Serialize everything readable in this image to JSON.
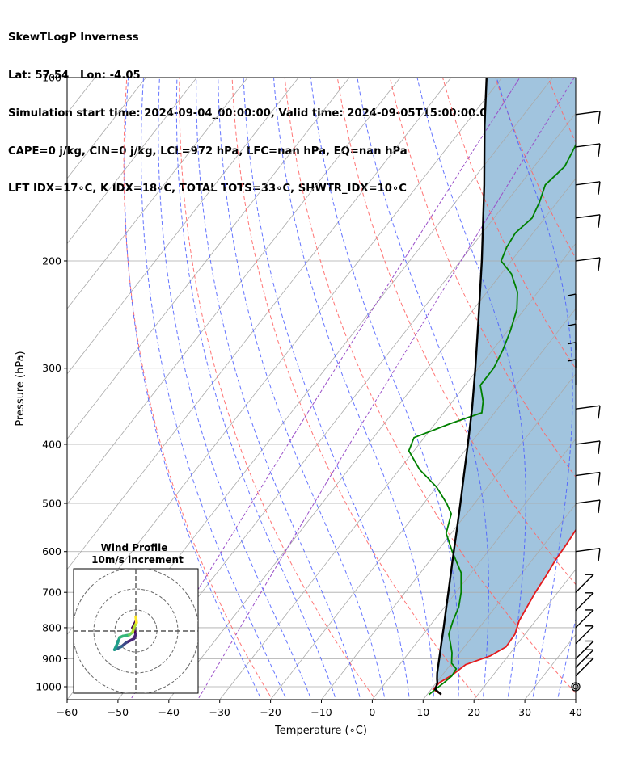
{
  "header": {
    "lines": [
      "SkewTLogP Inverness",
      "Lat: 57.54   Lon: -4.05",
      "Simulation start time: 2024-09-04_00:00:00, Valid time: 2024-09-05T15:00:00.00",
      "CAPE=0 j/kg, CIN=0 j/kg, LCL=972 hPa, LFC=nan hPa, EQ=nan hPa",
      "LFT IDX=17∘C, K IDX=18∘C, TOTAL TOTS=33∘C, SHWTR_IDX=10∘C"
    ]
  },
  "chart_data": {
    "type": "line",
    "subtype": "skew-t log-p",
    "xlabel": "Temperature (∘C)",
    "ylabel": "Pressure (hPa)",
    "xlim": [
      -60,
      40
    ],
    "ylim_hpa": [
      1050,
      100
    ],
    "x_ticks": [
      -60,
      -50,
      -40,
      -30,
      -20,
      -10,
      0,
      10,
      20,
      30,
      40
    ],
    "y_ticks": [
      1000,
      900,
      800,
      700,
      600,
      500,
      400,
      300,
      200,
      100
    ],
    "grid": true,
    "series": [
      {
        "role": "temperature",
        "color": "#e41a1c",
        "points": [
          [
            1030,
            12.8
          ],
          [
            1010,
            10.4
          ],
          [
            985,
            10.6
          ],
          [
            955,
            12
          ],
          [
            920,
            13
          ],
          [
            890,
            16.5
          ],
          [
            860,
            18.2
          ],
          [
            820,
            18
          ],
          [
            780,
            16.8
          ],
          [
            740,
            16.2
          ],
          [
            700,
            15.6
          ],
          [
            660,
            15.2
          ],
          [
            620,
            14.6
          ],
          [
            580,
            14.3
          ],
          [
            540,
            13.8
          ],
          [
            520,
            13
          ],
          [
            500,
            12
          ],
          [
            470,
            10
          ],
          [
            440,
            8
          ],
          [
            410,
            6
          ],
          [
            380,
            4
          ],
          [
            360,
            2
          ],
          [
            340,
            1
          ],
          [
            320,
            0
          ],
          [
            300,
            -1
          ],
          [
            280,
            -3
          ],
          [
            260,
            -5
          ],
          [
            240,
            -7
          ],
          [
            228,
            -8
          ],
          [
            215,
            -9
          ],
          [
            205,
            -10
          ],
          [
            200,
            -11
          ],
          [
            190,
            -13
          ],
          [
            180,
            -15
          ],
          [
            170,
            -16
          ],
          [
            160,
            -17
          ],
          [
            150,
            -19
          ],
          [
            140,
            -21
          ],
          [
            130,
            -23
          ],
          [
            122,
            -26
          ],
          [
            116,
            -29
          ],
          [
            110,
            -32
          ],
          [
            105,
            -34
          ],
          [
            100,
            -36
          ]
        ]
      },
      {
        "role": "dewpoint",
        "color": "#008000",
        "points": [
          [
            1030,
            10.4
          ],
          [
            1010,
            10.8
          ],
          [
            985,
            11.5
          ],
          [
            960,
            12
          ],
          [
            935,
            11.8
          ],
          [
            915,
            10
          ],
          [
            880,
            8.5
          ],
          [
            850,
            6.8
          ],
          [
            820,
            5
          ],
          [
            780,
            3.8
          ],
          [
            740,
            2.8
          ],
          [
            700,
            1
          ],
          [
            650,
            -2
          ],
          [
            600,
            -7
          ],
          [
            560,
            -11
          ],
          [
            520,
            -13
          ],
          [
            500,
            -15.5
          ],
          [
            470,
            -20
          ],
          [
            440,
            -26
          ],
          [
            410,
            -31
          ],
          [
            390,
            -32
          ],
          [
            370,
            -27
          ],
          [
            355,
            -22.5
          ],
          [
            340,
            -24
          ],
          [
            320,
            -27
          ],
          [
            300,
            -27
          ],
          [
            280,
            -28
          ],
          [
            260,
            -29.5
          ],
          [
            240,
            -31.5
          ],
          [
            225,
            -34
          ],
          [
            210,
            -38
          ],
          [
            200,
            -42
          ],
          [
            190,
            -43
          ],
          [
            180,
            -43.5
          ],
          [
            170,
            -42.5
          ],
          [
            160,
            -43.5
          ],
          [
            150,
            -45
          ],
          [
            140,
            -44
          ],
          [
            130,
            -45
          ],
          [
            120,
            -46.5
          ],
          [
            110,
            -48.5
          ],
          [
            100,
            -51
          ]
        ]
      },
      {
        "role": "parcel",
        "color": "#000000",
        "points": [
          [
            1030,
            12.8
          ],
          [
            1010,
            10.8
          ],
          [
            985,
            10.2
          ],
          [
            972,
            9.6
          ],
          [
            950,
            8.7
          ],
          [
            900,
            6.9
          ],
          [
            850,
            5
          ],
          [
            800,
            3
          ],
          [
            750,
            0.8
          ],
          [
            700,
            -1.5
          ],
          [
            650,
            -4
          ],
          [
            600,
            -6.7
          ],
          [
            550,
            -9.6
          ],
          [
            500,
            -12.8
          ],
          [
            450,
            -16.4
          ],
          [
            400,
            -20.4
          ],
          [
            350,
            -25
          ],
          [
            300,
            -30.6
          ],
          [
            250,
            -37.4
          ],
          [
            200,
            -45.8
          ],
          [
            150,
            -57
          ],
          [
            120,
            -66
          ],
          [
            100,
            -73
          ]
        ]
      }
    ],
    "shading": {
      "between": [
        "parcel",
        "temperature"
      ],
      "color": "#a1c4de"
    },
    "reference_lines": {
      "dry_adiabats_color": "#ff6666",
      "moist_adiabats_color": "#4a5dff",
      "mixing_ratio_color": "#9a4fc8",
      "isotherms_color": "#aaaaaa"
    },
    "wind_barbs": [
      {
        "p": 1000,
        "type": "calm"
      },
      {
        "p": 960,
        "type": "barb"
      },
      {
        "p": 930,
        "type": "barb"
      },
      {
        "p": 900,
        "type": "barb"
      },
      {
        "p": 850,
        "type": "barb"
      },
      {
        "p": 800,
        "type": "barb"
      },
      {
        "p": 750,
        "type": "barb"
      },
      {
        "p": 700,
        "type": "barb"
      },
      {
        "p": 600,
        "type": "barb"
      },
      {
        "p": 500,
        "type": "barb"
      },
      {
        "p": 450,
        "type": "barb"
      },
      {
        "p": 400,
        "type": "barb"
      },
      {
        "p": 350,
        "type": "barb"
      },
      {
        "p": 320,
        "type": "barb"
      },
      {
        "p": 300,
        "type": "barb"
      },
      {
        "p": 280,
        "type": "barb"
      },
      {
        "p": 250,
        "type": "barb"
      },
      {
        "p": 200,
        "type": "barb"
      },
      {
        "p": 170,
        "type": "barb"
      },
      {
        "p": 150,
        "type": "barb"
      },
      {
        "p": 130,
        "type": "barb"
      },
      {
        "p": 115,
        "type": "barb"
      }
    ],
    "inset": {
      "title_line1": "Wind Profile",
      "title_line2": "10m/s increment",
      "hodograph": [
        [
          0,
          -1.5
        ],
        [
          -0.5,
          -0.5
        ],
        [
          0,
          0.5
        ],
        [
          -0.3,
          1.2
        ],
        [
          -1.5,
          1.8
        ],
        [
          -2.2,
          2.4
        ],
        [
          -2.8,
          2.7
        ],
        [
          -3.0,
          2.5
        ],
        [
          -3.3,
          2.9
        ],
        [
          -2.8,
          1.8
        ],
        [
          -2.5,
          1.0
        ],
        [
          -2.0,
          0.8
        ],
        [
          -1.0,
          0.6
        ],
        [
          -0.5,
          0.2
        ],
        [
          -0.3,
          -0.5
        ],
        [
          0.1,
          -1.3
        ],
        [
          0.0,
          -2.2
        ]
      ]
    }
  }
}
